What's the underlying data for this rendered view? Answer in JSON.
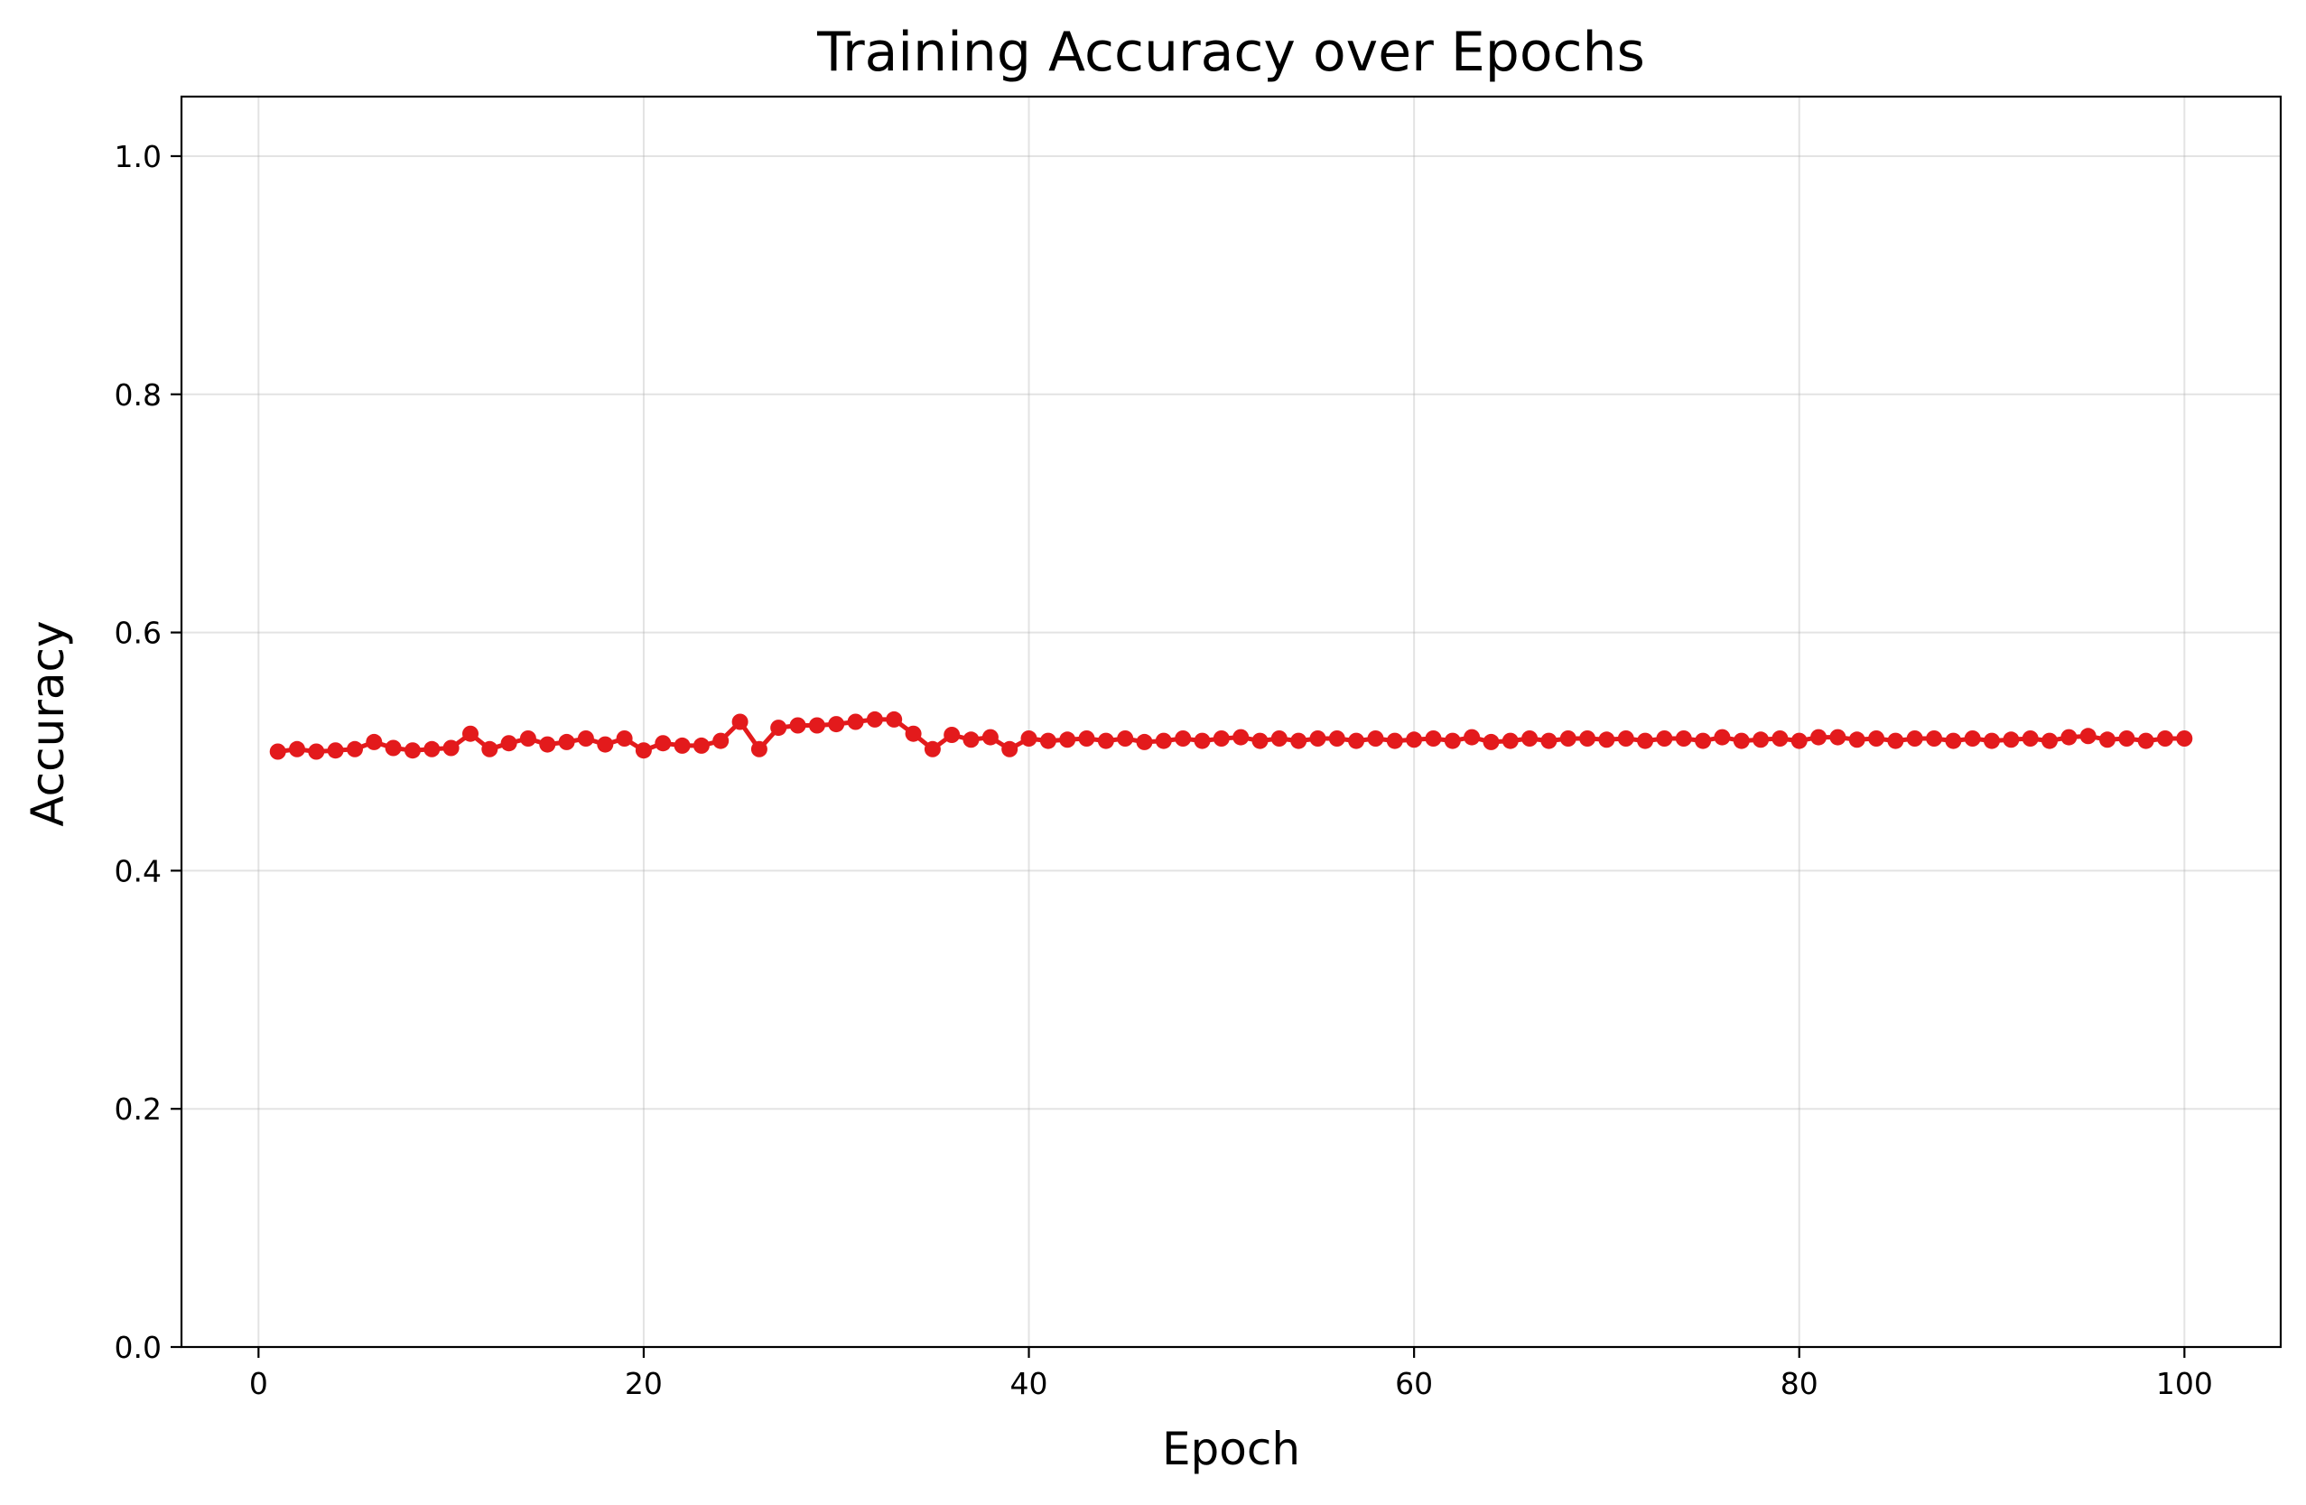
{
  "chart_data": {
    "type": "line",
    "title": "Training Accuracy over Epochs",
    "xlabel": "Epoch",
    "ylabel": "Accuracy",
    "xlim": [
      -4,
      105
    ],
    "ylim": [
      0.0,
      1.05
    ],
    "xticks": [
      0,
      20,
      40,
      60,
      80,
      100
    ],
    "xtick_labels": [
      "0",
      "20",
      "40",
      "60",
      "80",
      "100"
    ],
    "yticks": [
      0.0,
      0.2,
      0.4,
      0.6,
      0.8,
      1.0
    ],
    "ytick_labels": [
      "0.0",
      "0.2",
      "0.4",
      "0.6",
      "0.8",
      "1.0"
    ],
    "grid": true,
    "legend": "none",
    "series": [
      {
        "color": "#e31a1c",
        "marker": "circle",
        "x": [
          1,
          2,
          3,
          4,
          5,
          6,
          7,
          8,
          9,
          10,
          11,
          12,
          13,
          14,
          15,
          16,
          17,
          18,
          19,
          20,
          21,
          22,
          23,
          24,
          25,
          26,
          27,
          28,
          29,
          30,
          31,
          32,
          33,
          34,
          35,
          36,
          37,
          38,
          39,
          40,
          41,
          42,
          43,
          44,
          45,
          46,
          47,
          48,
          49,
          50,
          51,
          52,
          53,
          54,
          55,
          56,
          57,
          58,
          59,
          60,
          61,
          62,
          63,
          64,
          65,
          66,
          67,
          68,
          69,
          70,
          71,
          72,
          73,
          74,
          75,
          76,
          77,
          78,
          79,
          80,
          81,
          82,
          83,
          84,
          85,
          86,
          87,
          88,
          89,
          90,
          91,
          92,
          93,
          94,
          95,
          96,
          97,
          98,
          99,
          100
        ],
        "y": [
          0.5,
          0.502,
          0.5,
          0.501,
          0.502,
          0.508,
          0.503,
          0.501,
          0.502,
          0.503,
          0.515,
          0.502,
          0.507,
          0.511,
          0.506,
          0.508,
          0.511,
          0.506,
          0.511,
          0.501,
          0.507,
          0.505,
          0.505,
          0.509,
          0.525,
          0.502,
          0.52,
          0.522,
          0.522,
          0.523,
          0.525,
          0.527,
          0.527,
          0.515,
          0.502,
          0.514,
          0.51,
          0.512,
          0.502,
          0.511,
          0.509,
          0.51,
          0.511,
          0.509,
          0.511,
          0.508,
          0.509,
          0.511,
          0.509,
          0.511,
          0.512,
          0.509,
          0.511,
          0.509,
          0.511,
          0.511,
          0.509,
          0.511,
          0.509,
          0.51,
          0.511,
          0.509,
          0.512,
          0.508,
          0.509,
          0.511,
          0.509,
          0.511,
          0.511,
          0.51,
          0.511,
          0.509,
          0.511,
          0.511,
          0.509,
          0.512,
          0.509,
          0.51,
          0.511,
          0.509,
          0.512,
          0.512,
          0.51,
          0.511,
          0.509,
          0.511,
          0.511,
          0.509,
          0.511,
          0.509,
          0.51,
          0.511,
          0.509,
          0.512,
          0.513,
          0.51,
          0.511,
          0.509,
          0.511,
          0.511
        ]
      }
    ]
  }
}
